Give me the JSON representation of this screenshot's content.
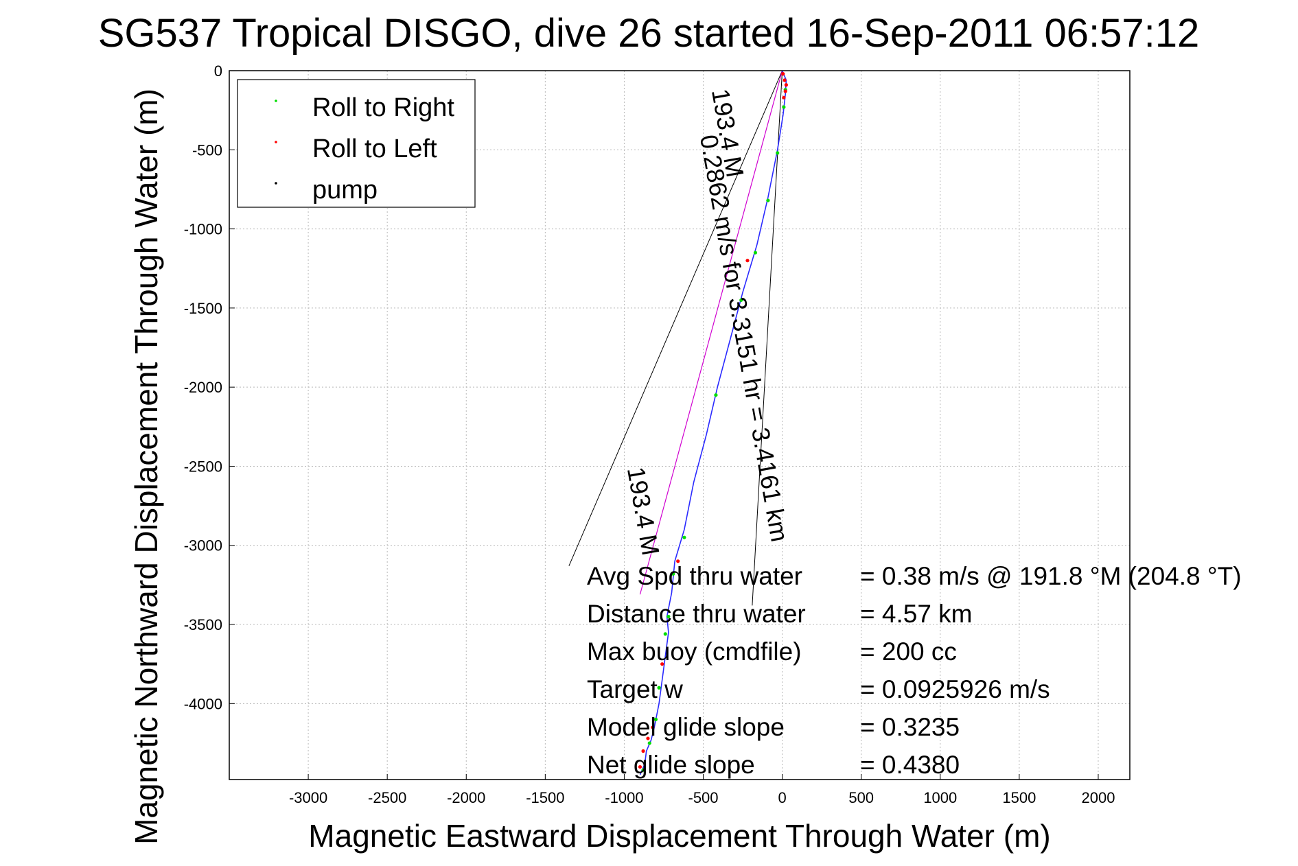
{
  "chart_data": {
    "type": "line",
    "title": "SG537 Tropical DISGO, dive 26 started 16-Sep-2011 06:57:12",
    "xlabel": "Magnetic Eastward Displacement Through Water (m)",
    "ylabel": "Magnetic Northward Displacement Through Water (m)",
    "xlim": [
      -3500,
      2200
    ],
    "ylim": [
      -4480,
      0
    ],
    "xticks": [
      -3000,
      -2500,
      -2000,
      -1500,
      -1000,
      -500,
      0,
      500,
      1000,
      1500,
      2000
    ],
    "yticks": [
      0,
      -500,
      -1000,
      -1500,
      -2000,
      -2500,
      -3000,
      -3500,
      -4000
    ],
    "grid": true,
    "legend_position": "top-left",
    "legend": [
      {
        "label": "Roll to Right",
        "color": "#00dd00"
      },
      {
        "label": "Roll to Left",
        "color": "#ff0000"
      },
      {
        "label": "pump",
        "color": "#000000"
      }
    ],
    "track": {
      "color": "#2a2aff",
      "x": [
        0,
        25,
        20,
        5,
        -30,
        -90,
        -160,
        -250,
        -330,
        -410,
        -480,
        -560,
        -620,
        -680,
        -700,
        -730,
        -720,
        -740,
        -760,
        -780,
        -790,
        -810,
        -830,
        -860,
        -870,
        -900
      ],
      "y": [
        0,
        -60,
        -150,
        -280,
        -500,
        -800,
        -1100,
        -1400,
        -1700,
        -2000,
        -2300,
        -2600,
        -2900,
        -3100,
        -3300,
        -3450,
        -3550,
        -3700,
        -3850,
        -4000,
        -4050,
        -4150,
        -4230,
        -4300,
        -4380,
        -4450
      ]
    },
    "roll_right": {
      "x": [
        20,
        10,
        -30,
        -90,
        -170,
        -260,
        -420,
        -620,
        -690,
        -720,
        -740,
        -780,
        -800,
        -840,
        -880
      ],
      "y": [
        -120,
        -230,
        -520,
        -820,
        -1150,
        -1450,
        -2050,
        -2950,
        -3180,
        -3450,
        -3560,
        -3900,
        -4100,
        -4250,
        -4420
      ]
    },
    "roll_left": {
      "x": [
        5,
        15,
        25,
        20,
        10,
        -220,
        -660,
        -760,
        -820,
        -850,
        -880,
        -900
      ],
      "y": [
        -20,
        -60,
        -90,
        -130,
        -170,
        -1200,
        -3100,
        -3750,
        -4150,
        -4220,
        -4300,
        -4400
      ]
    },
    "bearing_line": {
      "x": [
        0,
        -900
      ],
      "y": [
        0,
        -3310
      ]
    },
    "track_curve_label": "0.2862 m/s for 3.3151 hr = 3.4161 km",
    "heading_labels": [
      "193.4 M",
      "193.4 M"
    ],
    "annotations": [
      {
        "label": "Avg Spd thru water",
        "value": "=  0.38 m/s @ 191.8 °M (204.8 °T)"
      },
      {
        "label": "Distance thru water",
        "value": "=  4.57 km"
      },
      {
        "label": "Max buoy (cmdfile)",
        "value": "= 200 cc"
      },
      {
        "label": "Target w",
        "value": "= 0.0925926 m/s"
      },
      {
        "label": "Model glide slope",
        "value": "= 0.3235"
      },
      {
        "label": "Net glide slope",
        "value": "= 0.4380"
      }
    ]
  }
}
